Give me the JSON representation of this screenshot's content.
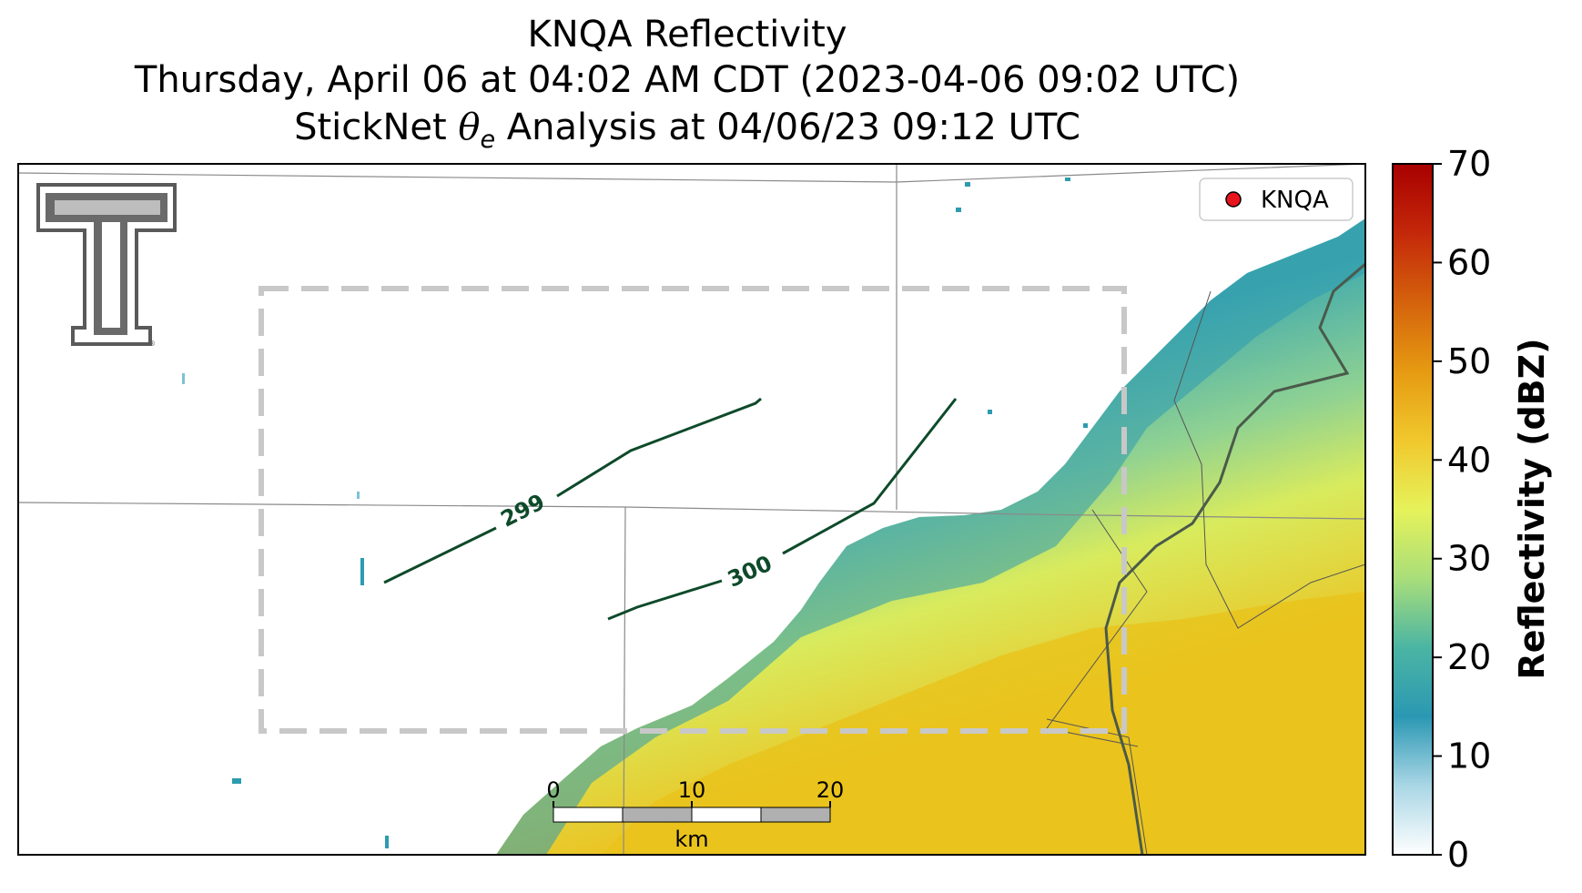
{
  "title": {
    "line1": "KNQA Reflectivity",
    "line2": "Thursday, April 06 at 04:02 AM CDT (2023-04-06 09:02 UTC)",
    "line3_prefix": "StickNet ",
    "line3_symbol": "θ",
    "line3_subscript": "e",
    "line3_suffix": " Analysis at 04/06/23 09:12 UTC"
  },
  "legend": {
    "label": "KNQA",
    "marker_color": "#e8141e"
  },
  "contours": [
    {
      "label": "299",
      "color": "#0e4a2a"
    },
    {
      "label": "300",
      "color": "#0e4a2a"
    }
  ],
  "scale_bar": {
    "ticks": [
      "0",
      "10",
      "20"
    ],
    "unit": "km"
  },
  "colorbar": {
    "label": "Reflectivity (dBZ)",
    "min": 0,
    "max": 70,
    "ticks": [
      "0",
      "10",
      "20",
      "30",
      "40",
      "50",
      "60",
      "70"
    ],
    "colors": [
      "#ffffff",
      "#a9d6e5",
      "#2b98b3",
      "#4bb5a3",
      "#a9de7a",
      "#e6f25a",
      "#f0c82d",
      "#e69a12",
      "#d4620c",
      "#c4280a",
      "#a80000"
    ]
  },
  "logo": {
    "name": "Texas Tech Double T",
    "color": "#606060"
  }
}
